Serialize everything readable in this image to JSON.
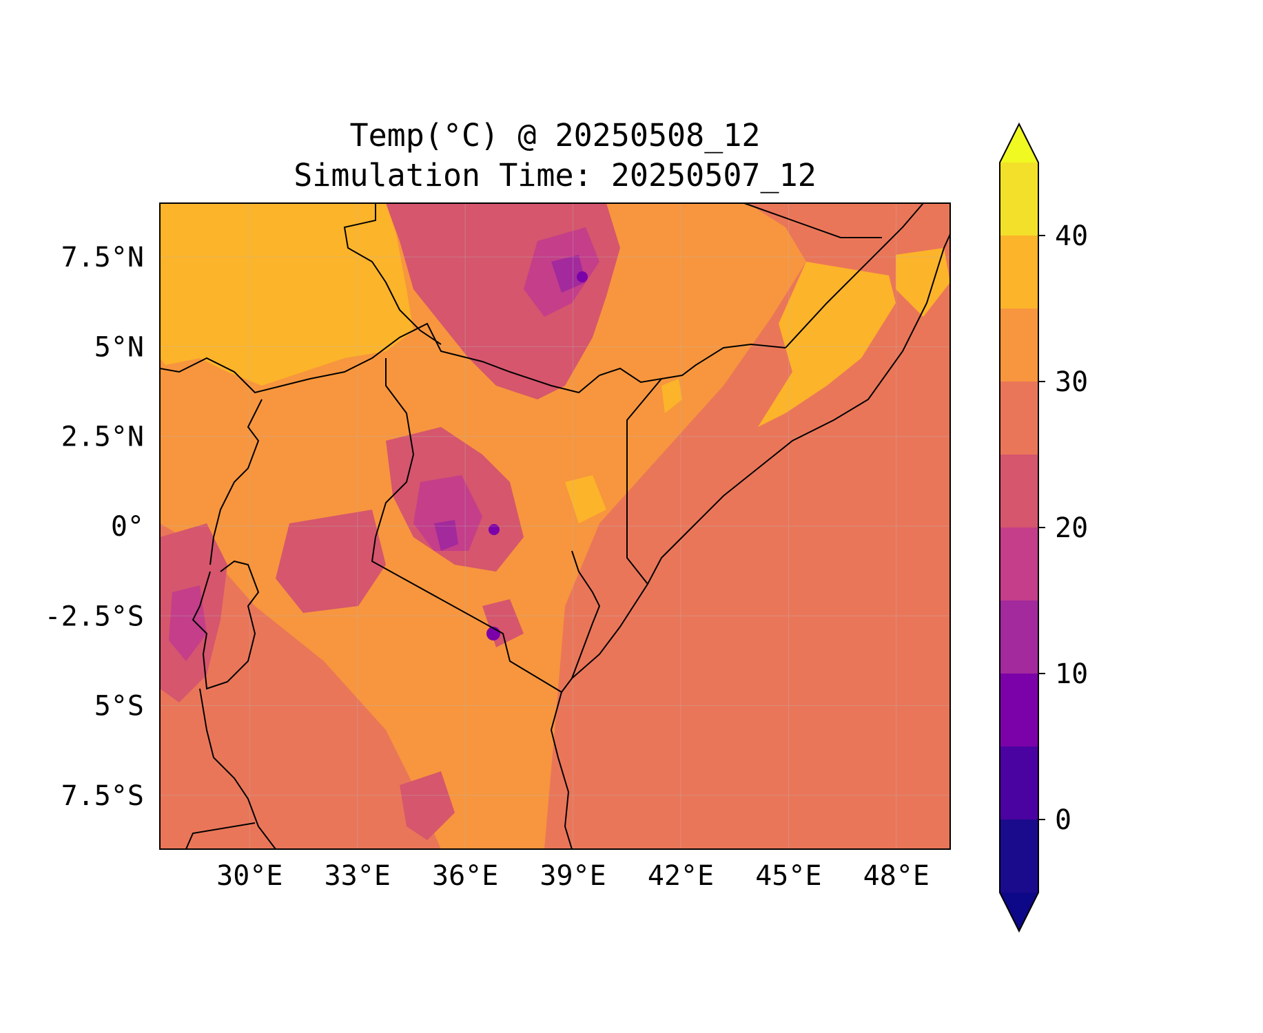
{
  "title": "Temp(°C) @ 20250508_12",
  "subtitle": "Simulation Time: 20250507_12",
  "map": {
    "lon_range": [
      27.5,
      49.5
    ],
    "lat_range": [
      -9,
      9
    ],
    "x_ticks": [
      {
        "lon": 30,
        "label": "30°E"
      },
      {
        "lon": 33,
        "label": "33°E"
      },
      {
        "lon": 36,
        "label": "36°E"
      },
      {
        "lon": 39,
        "label": "39°E"
      },
      {
        "lon": 42,
        "label": "42°E"
      },
      {
        "lon": 45,
        "label": "45°E"
      },
      {
        "lon": 48,
        "label": "48°E"
      }
    ],
    "y_ticks": [
      {
        "lat": 7.5,
        "label": "7.5°N"
      },
      {
        "lat": 5,
        "label": "5°N"
      },
      {
        "lat": 2.5,
        "label": "2.5°N"
      },
      {
        "lat": 0,
        "label": "0°"
      },
      {
        "lat": -2.5,
        "label": "-2.5°S"
      },
      {
        "lat": -5,
        "label": "5°S"
      },
      {
        "lat": -7.5,
        "label": "7.5°S"
      }
    ],
    "gridlines": true
  },
  "colorbar": {
    "levels": [
      -5,
      0,
      5,
      10,
      15,
      20,
      25,
      30,
      35,
      40,
      45
    ],
    "colors": [
      "#1a0b8c",
      "#4a02a0",
      "#7b02a8",
      "#a22a9c",
      "#c43e8a",
      "#d5566d",
      "#ea7659",
      "#f7963e",
      "#fcb42a",
      "#f3e02a"
    ],
    "extend_min_color": "#0d0887",
    "extend_max_color": "#f0f921",
    "tick_labels": [
      {
        "value": 0,
        "label": "0"
      },
      {
        "value": 10,
        "label": "10"
      },
      {
        "value": 20,
        "label": "20"
      },
      {
        "value": 30,
        "label": "30"
      },
      {
        "value": 40,
        "label": "40"
      }
    ]
  }
}
